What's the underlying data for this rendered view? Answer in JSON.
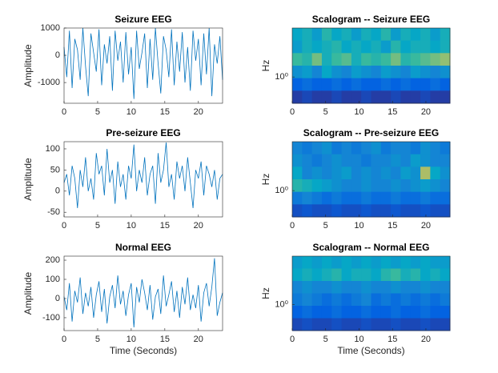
{
  "chart_data": [
    {
      "type": "line",
      "title": "Seizure EEG",
      "ylabel": "Amplitude",
      "color": "#0072bd",
      "x": [
        0,
        0.4,
        0.8,
        1.2,
        1.6,
        2,
        2.4,
        2.8,
        3.2,
        3.6,
        4,
        4.4,
        4.8,
        5.2,
        5.6,
        6,
        6.4,
        6.8,
        7.2,
        7.6,
        8,
        8.4,
        8.8,
        9.2,
        9.6,
        10,
        10.4,
        10.8,
        11.2,
        11.6,
        12,
        12.4,
        12.8,
        13.2,
        13.6,
        14,
        14.4,
        14.8,
        15.2,
        15.6,
        16,
        16.4,
        16.8,
        17.2,
        17.6,
        18,
        18.4,
        18.8,
        19.2,
        19.6,
        20,
        20.4,
        20.8,
        21.2,
        21.6,
        22,
        22.4,
        22.8,
        23.2,
        23.6
      ],
      "values": [
        300,
        -800,
        900,
        -1200,
        600,
        200,
        -900,
        1000,
        -400,
        -1500,
        800,
        100,
        -600,
        950,
        -1100,
        400,
        -300,
        700,
        -1300,
        900,
        -200,
        500,
        -1000,
        850,
        -700,
        300,
        -1600,
        900,
        -500,
        100,
        800,
        -1200,
        600,
        -900,
        1000,
        -300,
        -1400,
        700,
        200,
        -800,
        950,
        -1100,
        500,
        -600,
        850,
        -1000,
        300,
        -1300,
        900,
        -200,
        600,
        -1100,
        800,
        -700,
        1000,
        -1500,
        400,
        -300,
        700,
        -900
      ],
      "xlim": [
        0,
        23.6
      ],
      "xticks": [
        0,
        5,
        10,
        15,
        20
      ],
      "ylim": [
        -1760,
        1000
      ],
      "yticks": [
        -1000,
        0,
        1000
      ]
    },
    {
      "type": "heatmap",
      "title": "Scalogram -- Seizure EEG",
      "ylabel": "Hz",
      "colormap": "parula",
      "log_y": true,
      "xlim": [
        0,
        23.6
      ],
      "xticks": [
        0,
        5,
        10,
        15,
        20
      ],
      "ylim": [
        0.2,
        20
      ],
      "yticks": [
        {
          "value": 1,
          "label": "10⁰"
        }
      ],
      "z": [
        [
          0.45,
          0.5,
          0.4,
          0.55,
          0.45,
          0.5,
          0.4,
          0.5,
          0.45,
          0.55,
          0.4,
          0.5,
          0.45,
          0.5,
          0.4,
          0.5
        ],
        [
          0.4,
          0.5,
          0.45,
          0.5,
          0.55,
          0.45,
          0.5,
          0.45,
          0.5,
          0.4,
          0.55,
          0.45,
          0.5,
          0.5,
          0.45,
          0.5
        ],
        [
          0.6,
          0.55,
          0.7,
          0.5,
          0.6,
          0.65,
          0.5,
          0.6,
          0.55,
          0.6,
          0.7,
          0.55,
          0.6,
          0.65,
          0.7,
          0.75
        ],
        [
          0.35,
          0.4,
          0.3,
          0.45,
          0.35,
          0.3,
          0.4,
          0.35,
          0.3,
          0.4,
          0.35,
          0.3,
          0.4,
          0.35,
          0.3,
          0.35
        ],
        [
          0.15,
          0.2,
          0.15,
          0.15,
          0.2,
          0.15,
          0.2,
          0.15,
          0.15,
          0.2,
          0.15,
          0.2,
          0.15,
          0.15,
          0.2,
          0.15
        ],
        [
          0.05,
          0.08,
          0.05,
          0.05,
          0.08,
          0.05,
          0.05,
          0.08,
          0.05,
          0.05,
          0.08,
          0.05,
          0.05,
          0.08,
          0.05,
          0.05
        ]
      ]
    },
    {
      "type": "line",
      "title": "Pre-seizure EEG",
      "ylabel": "Amplitude",
      "color": "#0072bd",
      "x": [
        0,
        0.4,
        0.8,
        1.2,
        1.6,
        2,
        2.4,
        2.8,
        3.2,
        3.6,
        4,
        4.4,
        4.8,
        5.2,
        5.6,
        6,
        6.4,
        6.8,
        7.2,
        7.6,
        8,
        8.4,
        8.8,
        9.2,
        9.6,
        10,
        10.4,
        10.8,
        11.2,
        11.6,
        12,
        12.4,
        12.8,
        13.2,
        13.6,
        14,
        14.4,
        14.8,
        15.2,
        15.6,
        16,
        16.4,
        16.8,
        17.2,
        17.6,
        18,
        18.4,
        18.8,
        19.2,
        19.6,
        20,
        20.4,
        20.8,
        21.2,
        21.6,
        22,
        22.4,
        22.8,
        23.2,
        23.6
      ],
      "values": [
        20,
        40,
        -10,
        60,
        30,
        -40,
        50,
        10,
        80,
        0,
        30,
        -20,
        90,
        40,
        60,
        -10,
        100,
        20,
        50,
        -30,
        70,
        10,
        40,
        -20,
        60,
        30,
        110,
        0,
        50,
        20,
        80,
        -10,
        40,
        60,
        -30,
        90,
        20,
        50,
        115,
        10,
        40,
        -20,
        70,
        30,
        60,
        0,
        80,
        20,
        -40,
        50,
        30,
        70,
        -10,
        60,
        40,
        10,
        50,
        -20,
        30,
        40
      ],
      "xlim": [
        0,
        23.6
      ],
      "xticks": [
        0,
        5,
        10,
        15,
        20
      ],
      "ylim": [
        -61,
        117
      ],
      "yticks": [
        -50,
        0,
        50,
        100
      ]
    },
    {
      "type": "heatmap",
      "title": "Scalogram -- Pre-seizure EEG",
      "ylabel": "Hz",
      "colormap": "parula",
      "log_y": true,
      "xlim": [
        0,
        23.6
      ],
      "xticks": [
        0,
        5,
        10,
        15,
        20
      ],
      "ylim": [
        0.2,
        20
      ],
      "yticks": [
        {
          "value": 1,
          "label": "10⁰"
        }
      ],
      "z": [
        [
          0.3,
          0.25,
          0.3,
          0.35,
          0.25,
          0.3,
          0.25,
          0.3,
          0.35,
          0.25,
          0.3,
          0.3,
          0.25,
          0.35,
          0.3,
          0.25
        ],
        [
          0.35,
          0.3,
          0.25,
          0.3,
          0.35,
          0.3,
          0.3,
          0.25,
          0.3,
          0.3,
          0.35,
          0.3,
          0.4,
          0.35,
          0.3,
          0.3
        ],
        [
          0.45,
          0.3,
          0.35,
          0.3,
          0.35,
          0.4,
          0.3,
          0.35,
          0.3,
          0.35,
          0.3,
          0.4,
          0.35,
          0.8,
          0.45,
          0.35
        ],
        [
          0.55,
          0.5,
          0.45,
          0.4,
          0.35,
          0.3,
          0.3,
          0.35,
          0.3,
          0.3,
          0.35,
          0.3,
          0.35,
          0.4,
          0.35,
          0.3
        ],
        [
          0.25,
          0.3,
          0.25,
          0.2,
          0.25,
          0.2,
          0.2,
          0.25,
          0.2,
          0.2,
          0.25,
          0.2,
          0.2,
          0.25,
          0.2,
          0.2
        ],
        [
          0.1,
          0.12,
          0.1,
          0.1,
          0.12,
          0.1,
          0.1,
          0.12,
          0.1,
          0.1,
          0.12,
          0.1,
          0.1,
          0.12,
          0.1,
          0.1
        ]
      ]
    },
    {
      "type": "line",
      "title": "Normal EEG",
      "ylabel": "Amplitude",
      "xlabel": "Time (Seconds)",
      "color": "#0072bd",
      "x": [
        0,
        0.4,
        0.8,
        1.2,
        1.6,
        2,
        2.4,
        2.8,
        3.2,
        3.6,
        4,
        4.4,
        4.8,
        5.2,
        5.6,
        6,
        6.4,
        6.8,
        7.2,
        7.6,
        8,
        8.4,
        8.8,
        9.2,
        9.6,
        10,
        10.4,
        10.8,
        11.2,
        11.6,
        12,
        12.4,
        12.8,
        13.2,
        13.6,
        14,
        14.4,
        14.8,
        15.2,
        15.6,
        16,
        16.4,
        16.8,
        17.2,
        17.6,
        18,
        18.4,
        18.8,
        19.2,
        19.6,
        20,
        20.4,
        20.8,
        21.2,
        21.6,
        22,
        22.4,
        22.8,
        23.2,
        23.6
      ],
      "values": [
        10,
        -60,
        80,
        -120,
        40,
        -20,
        110,
        -80,
        30,
        -40,
        60,
        -100,
        20,
        90,
        -70,
        50,
        -130,
        10,
        70,
        -50,
        120,
        -30,
        40,
        -90,
        20,
        80,
        -150,
        60,
        -20,
        100,
        30,
        -60,
        70,
        -110,
        10,
        50,
        -80,
        120,
        -40,
        20,
        90,
        -70,
        40,
        -100,
        60,
        -30,
        110,
        -60,
        20,
        -50,
        70,
        -120,
        30,
        80,
        -40,
        60,
        210,
        -90,
        -20,
        30
      ],
      "xlim": [
        0,
        23.6
      ],
      "xticks": [
        0,
        5,
        10,
        15,
        20
      ],
      "ylim": [
        -167,
        221
      ],
      "yticks": [
        -100,
        0,
        100,
        200
      ]
    },
    {
      "type": "heatmap",
      "title": "Scalogram -- Normal EEG",
      "ylabel": "Hz",
      "xlabel": "Time (Seconds)",
      "colormap": "parula",
      "log_y": true,
      "xlim": [
        0,
        23.6
      ],
      "xticks": [
        0,
        5,
        10,
        15,
        20
      ],
      "ylim": [
        0.2,
        20
      ],
      "yticks": [
        {
          "value": 1,
          "label": "10⁰"
        }
      ],
      "z": [
        [
          0.4,
          0.45,
          0.4,
          0.45,
          0.4,
          0.45,
          0.4,
          0.45,
          0.4,
          0.45,
          0.4,
          0.45,
          0.4,
          0.45,
          0.4,
          0.4
        ],
        [
          0.45,
          0.5,
          0.45,
          0.5,
          0.55,
          0.45,
          0.5,
          0.5,
          0.45,
          0.55,
          0.6,
          0.5,
          0.55,
          0.45,
          0.5,
          0.45
        ],
        [
          0.3,
          0.35,
          0.3,
          0.3,
          0.35,
          0.3,
          0.3,
          0.35,
          0.3,
          0.3,
          0.35,
          0.3,
          0.3,
          0.35,
          0.3,
          0.3
        ],
        [
          0.25,
          0.3,
          0.25,
          0.2,
          0.25,
          0.2,
          0.25,
          0.3,
          0.2,
          0.25,
          0.2,
          0.25,
          0.2,
          0.25,
          0.2,
          0.25
        ],
        [
          0.15,
          0.2,
          0.15,
          0.15,
          0.2,
          0.15,
          0.15,
          0.2,
          0.15,
          0.15,
          0.2,
          0.15,
          0.15,
          0.2,
          0.15,
          0.15
        ],
        [
          0.08,
          0.1,
          0.08,
          0.08,
          0.1,
          0.08,
          0.08,
          0.1,
          0.08,
          0.08,
          0.1,
          0.08,
          0.08,
          0.1,
          0.08,
          0.08
        ]
      ]
    }
  ]
}
